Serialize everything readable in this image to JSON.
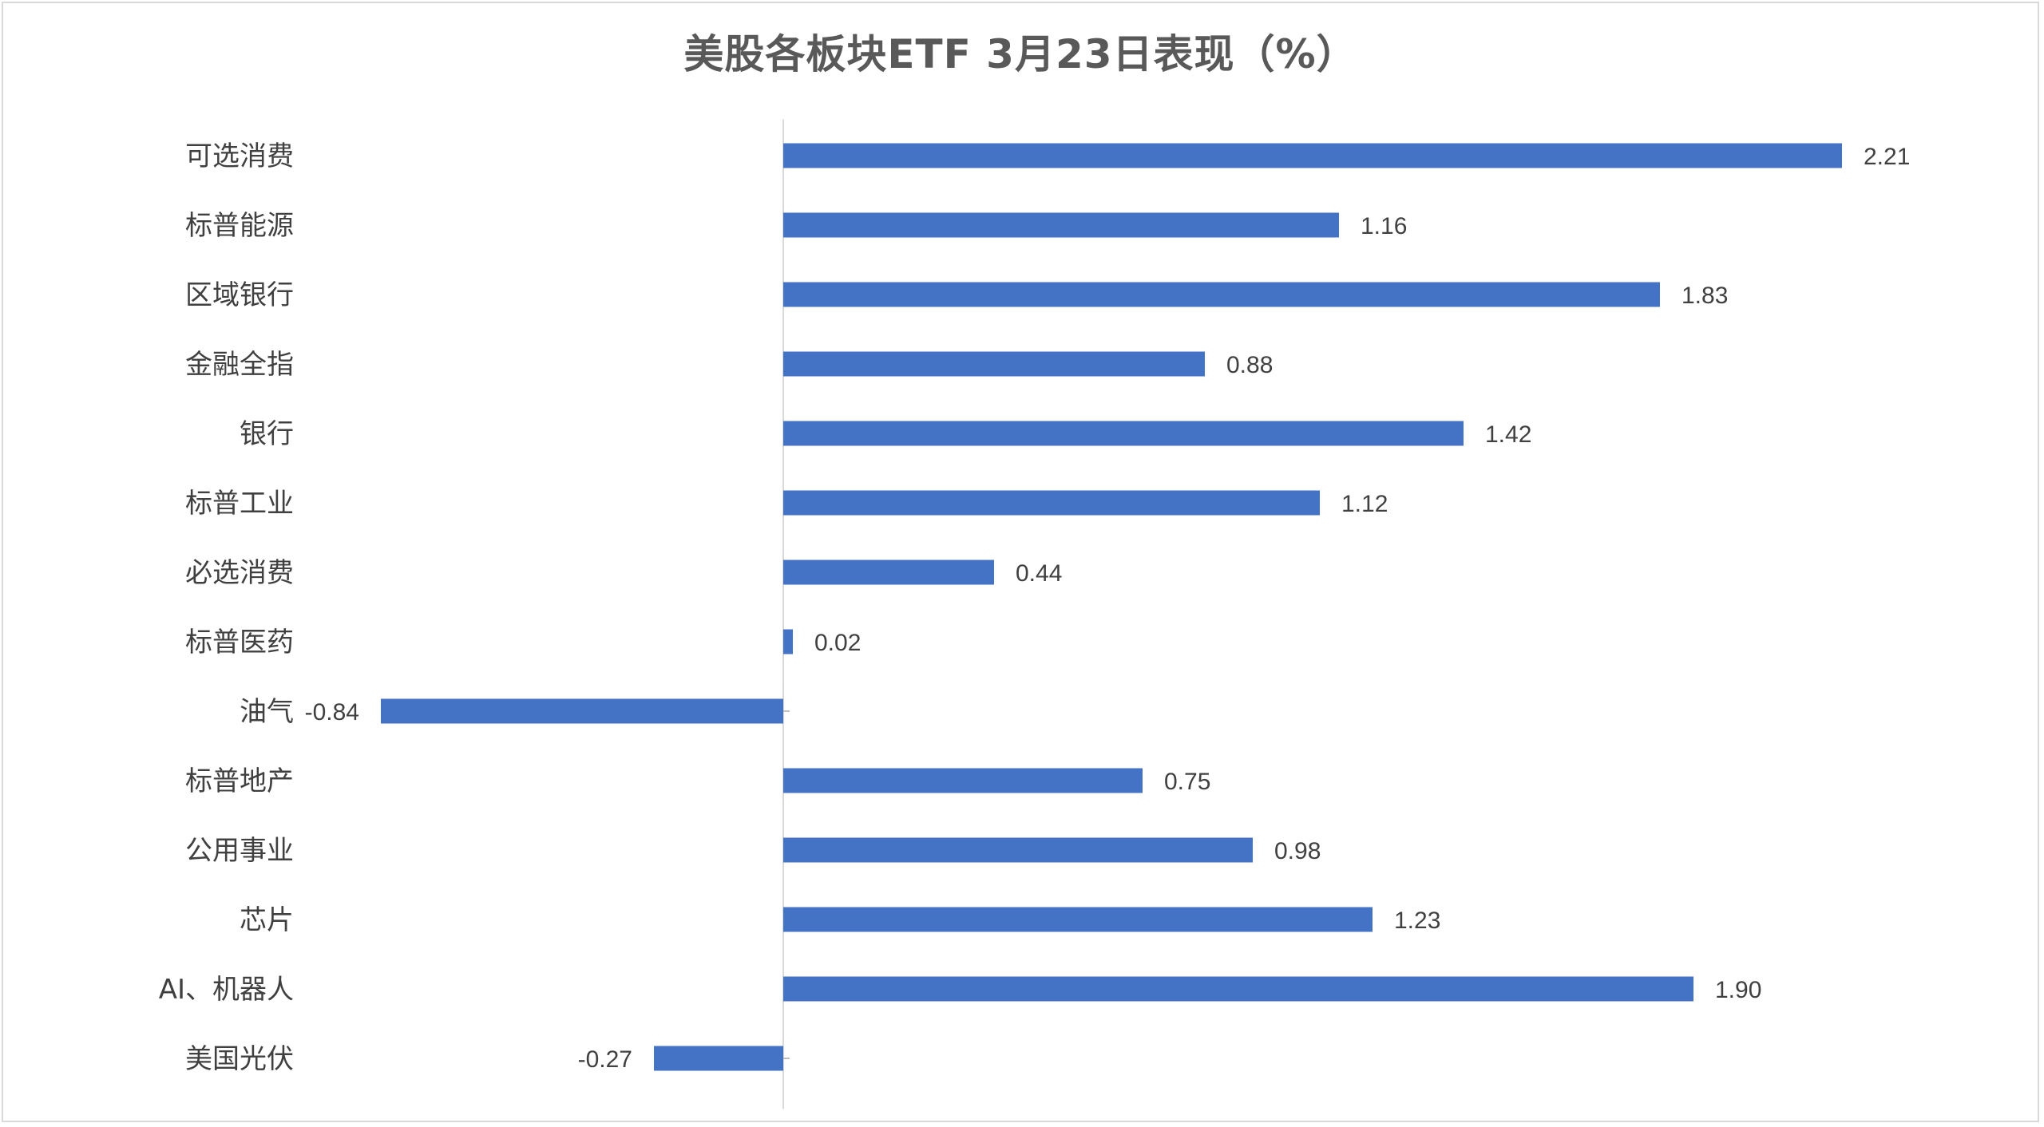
{
  "chart_data": {
    "type": "bar",
    "orientation": "horizontal",
    "title": "美股各板块ETF  3月23日表现（%）",
    "categories": [
      "可选消费",
      "标普能源",
      "区域银行",
      "金融全指",
      "银行",
      "标普工业",
      "必选消费",
      "标普医药",
      "油气",
      "标普地产",
      "公用事业",
      "芯片",
      "AI、机器人",
      "美国光伏"
    ],
    "values": [
      2.21,
      1.16,
      1.83,
      0.88,
      1.42,
      1.12,
      0.44,
      0.02,
      -0.84,
      0.75,
      0.98,
      1.23,
      1.9,
      -0.27
    ],
    "value_labels": [
      "2.21",
      "1.16",
      "1.83",
      "0.88",
      "1.42",
      "1.12",
      "0.44",
      "0.02",
      "-0.84",
      "0.75",
      "0.98",
      "1.23",
      "1.90",
      "-0.27"
    ],
    "xlim": [
      -0.84,
      2.21
    ],
    "grid": false,
    "legend": "none",
    "bar_color": "#4472C4",
    "axis_color": "#d9d9d9"
  }
}
